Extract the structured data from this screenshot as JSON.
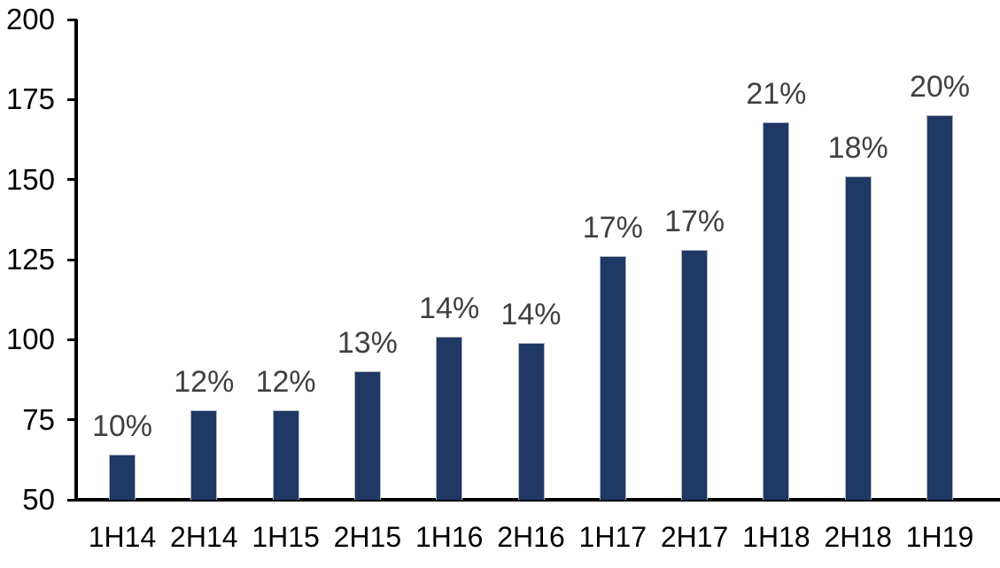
{
  "chart_data": {
    "type": "bar",
    "title": "",
    "xlabel": "",
    "ylabel": "",
    "categories": [
      "1H14",
      "2H14",
      "1H15",
      "2H15",
      "1H16",
      "2H16",
      "1H17",
      "2H17",
      "1H18",
      "2H18",
      "1H19"
    ],
    "values": [
      64,
      78,
      78,
      90,
      101,
      99,
      126,
      128,
      168,
      151,
      170
    ],
    "bar_labels": [
      "10%",
      "12%",
      "12%",
      "13%",
      "14%",
      "14%",
      "17%",
      "17%",
      "21%",
      "18%",
      "20%"
    ],
    "ylim": [
      50,
      200
    ],
    "yticks": [
      50,
      75,
      100,
      125,
      150,
      175,
      200
    ],
    "grid": false,
    "legend_position": "none",
    "colors": {
      "bar_fill": "#1F3864",
      "bar_border": "#AEB4C2",
      "axis_line": "#000000",
      "axis_tick_text": "#000000",
      "bar_label_text": "#404040",
      "background": "#FFFFFF"
    }
  }
}
